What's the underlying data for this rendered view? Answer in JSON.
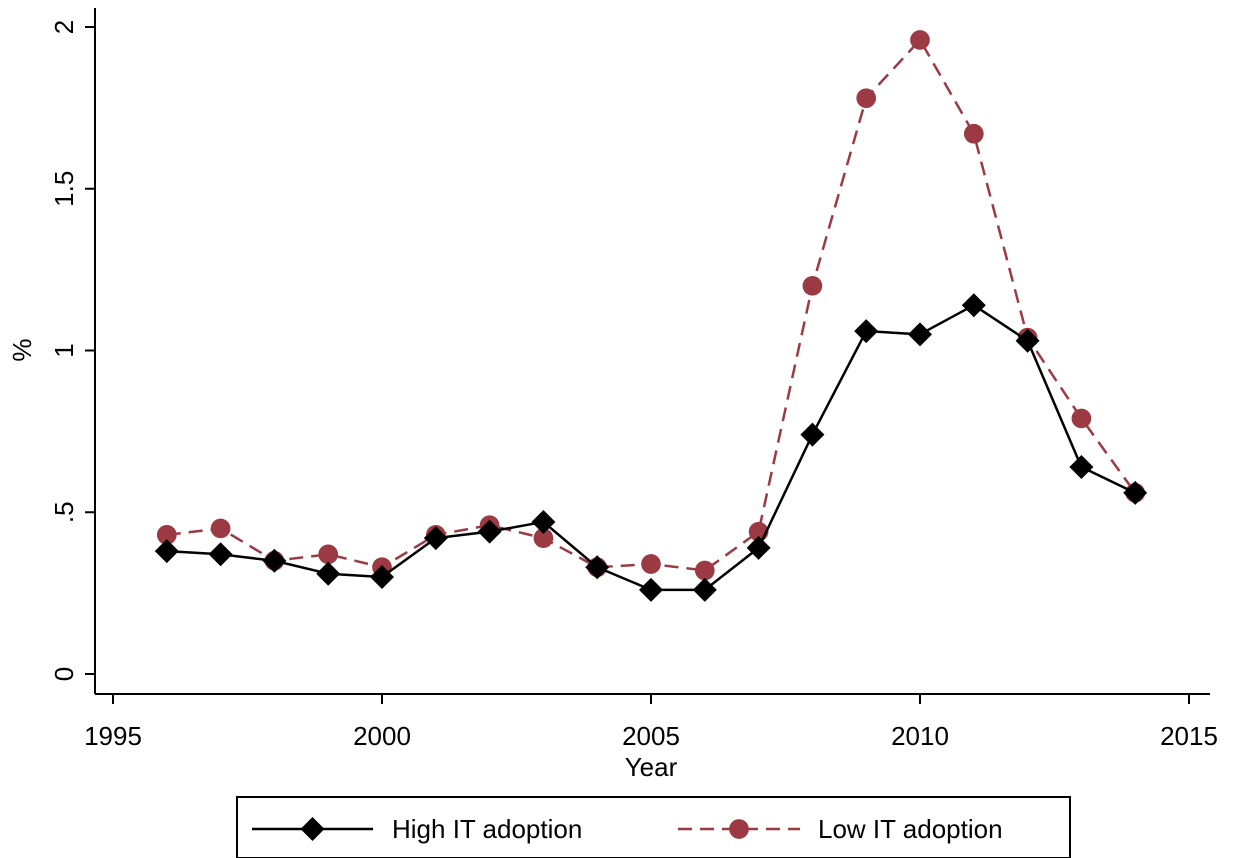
{
  "chart_data": {
    "type": "line",
    "title": "",
    "xlabel": "Year",
    "ylabel": "%",
    "xlim": [
      1995,
      2015
    ],
    "ylim": [
      0,
      2
    ],
    "x_ticks": [
      1995,
      2000,
      2005,
      2010,
      2015
    ],
    "y_ticks": [
      0,
      0.5,
      1,
      1.5,
      2
    ],
    "y_tick_labels": [
      "0",
      ".5",
      "1",
      "1.5",
      "2"
    ],
    "grid": false,
    "legend_position": "bottom",
    "x": [
      1996,
      1997,
      1998,
      1999,
      2000,
      2001,
      2002,
      2003,
      2004,
      2005,
      2006,
      2007,
      2008,
      2009,
      2010,
      2011,
      2012,
      2013,
      2014
    ],
    "series": [
      {
        "name": "High IT adoption",
        "color": "#000000",
        "marker": "diamond",
        "line_style": "solid",
        "values": [
          0.38,
          0.37,
          0.35,
          0.31,
          0.3,
          0.42,
          0.44,
          0.47,
          0.33,
          0.26,
          0.26,
          0.39,
          0.74,
          1.06,
          1.05,
          1.14,
          1.03,
          0.64,
          0.56
        ]
      },
      {
        "name": "Low IT adoption",
        "color": "#9b3a43",
        "marker": "circle",
        "line_style": "dashed",
        "values": [
          0.43,
          0.45,
          0.35,
          0.37,
          0.33,
          0.43,
          0.46,
          0.42,
          0.33,
          0.34,
          0.32,
          0.44,
          1.2,
          1.78,
          1.96,
          1.67,
          1.04,
          0.79,
          0.56
        ]
      }
    ]
  }
}
